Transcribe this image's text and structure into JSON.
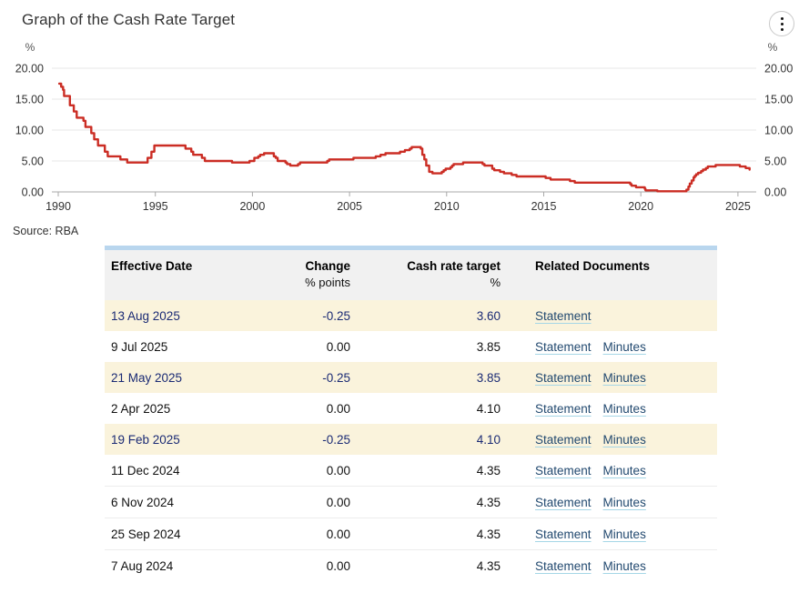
{
  "page": {
    "title": "Graph of the Cash Rate Target",
    "source": "Source: RBA"
  },
  "menu": {
    "icon": "kebab-menu-icon"
  },
  "chart_data": {
    "type": "line",
    "style": "step",
    "title": "Graph of the Cash Rate Target",
    "ylabel_left": "%",
    "ylabel_right": "%",
    "line_color": "#cb2d24",
    "grid": true,
    "xlim": [
      1989.7,
      2026.0
    ],
    "ylim": [
      0,
      20
    ],
    "x_ticks": [
      1990,
      1995,
      2000,
      2005,
      2010,
      2015,
      2020,
      2025
    ],
    "y_ticks": [
      "20.00",
      "15.00",
      "10.00",
      "5.00",
      "0.00"
    ],
    "points": [
      [
        1990.05,
        17.5
      ],
      [
        1990.15,
        17.0
      ],
      [
        1990.25,
        16.5
      ],
      [
        1990.3,
        15.5
      ],
      [
        1990.6,
        14.0
      ],
      [
        1990.8,
        13.0
      ],
      [
        1990.95,
        12.0
      ],
      [
        1991.3,
        11.5
      ],
      [
        1991.4,
        10.5
      ],
      [
        1991.7,
        9.5
      ],
      [
        1991.85,
        8.5
      ],
      [
        1992.05,
        7.5
      ],
      [
        1992.4,
        6.5
      ],
      [
        1992.55,
        5.75
      ],
      [
        1993.2,
        5.25
      ],
      [
        1993.55,
        4.75
      ],
      [
        1994.6,
        5.5
      ],
      [
        1994.8,
        6.5
      ],
      [
        1994.95,
        7.5
      ],
      [
        1996.55,
        7.0
      ],
      [
        1996.85,
        6.5
      ],
      [
        1996.95,
        6.0
      ],
      [
        1997.4,
        5.5
      ],
      [
        1997.55,
        5.0
      ],
      [
        1998.95,
        4.75
      ],
      [
        1999.85,
        5.0
      ],
      [
        2000.1,
        5.5
      ],
      [
        2000.3,
        5.75
      ],
      [
        2000.4,
        6.0
      ],
      [
        2000.6,
        6.25
      ],
      [
        2001.1,
        5.75
      ],
      [
        2001.2,
        5.5
      ],
      [
        2001.3,
        5.0
      ],
      [
        2001.7,
        4.75
      ],
      [
        2001.78,
        4.5
      ],
      [
        2001.95,
        4.25
      ],
      [
        2002.35,
        4.5
      ],
      [
        2002.45,
        4.75
      ],
      [
        2003.85,
        5.0
      ],
      [
        2003.95,
        5.25
      ],
      [
        2005.2,
        5.5
      ],
      [
        2006.35,
        5.75
      ],
      [
        2006.6,
        6.0
      ],
      [
        2006.85,
        6.25
      ],
      [
        2007.6,
        6.5
      ],
      [
        2007.85,
        6.75
      ],
      [
        2008.1,
        7.0
      ],
      [
        2008.2,
        7.25
      ],
      [
        2008.67,
        7.0
      ],
      [
        2008.75,
        6.0
      ],
      [
        2008.85,
        5.25
      ],
      [
        2008.95,
        4.25
      ],
      [
        2009.1,
        3.25
      ],
      [
        2009.27,
        3.0
      ],
      [
        2009.75,
        3.25
      ],
      [
        2009.85,
        3.5
      ],
      [
        2009.95,
        3.75
      ],
      [
        2010.2,
        4.0
      ],
      [
        2010.28,
        4.25
      ],
      [
        2010.36,
        4.5
      ],
      [
        2010.85,
        4.75
      ],
      [
        2011.85,
        4.5
      ],
      [
        2011.95,
        4.25
      ],
      [
        2012.35,
        3.75
      ],
      [
        2012.45,
        3.5
      ],
      [
        2012.75,
        3.25
      ],
      [
        2012.95,
        3.0
      ],
      [
        2013.35,
        2.75
      ],
      [
        2013.6,
        2.5
      ],
      [
        2015.1,
        2.25
      ],
      [
        2015.35,
        2.0
      ],
      [
        2016.35,
        1.75
      ],
      [
        2016.6,
        1.5
      ],
      [
        2019.45,
        1.25
      ],
      [
        2019.52,
        1.0
      ],
      [
        2019.75,
        0.75
      ],
      [
        2020.2,
        0.5
      ],
      [
        2020.24,
        0.25
      ],
      [
        2020.85,
        0.1
      ],
      [
        2022.35,
        0.35
      ],
      [
        2022.45,
        0.85
      ],
      [
        2022.52,
        1.35
      ],
      [
        2022.62,
        1.85
      ],
      [
        2022.72,
        2.35
      ],
      [
        2022.78,
        2.6
      ],
      [
        2022.85,
        2.85
      ],
      [
        2022.95,
        3.1
      ],
      [
        2023.1,
        3.35
      ],
      [
        2023.2,
        3.6
      ],
      [
        2023.35,
        3.85
      ],
      [
        2023.45,
        4.1
      ],
      [
        2023.85,
        4.35
      ],
      [
        2025.1,
        4.1
      ],
      [
        2025.4,
        3.85
      ],
      [
        2025.6,
        3.6
      ]
    ]
  },
  "colors": {
    "line_red": "#cb2d24",
    "highlight_row_bg": "#faf3dc",
    "highlight_row_text": "#1a2a74",
    "link": "#234a70",
    "link_underline": "#a5d6e6",
    "table_top_border": "#b9d6ee",
    "header_bg": "#f1f1f1"
  },
  "table": {
    "headers": [
      {
        "label": "Effective Date",
        "sub": ""
      },
      {
        "label": "Change",
        "sub": "% points"
      },
      {
        "label": "Cash rate target",
        "sub": "%"
      },
      {
        "label": "Related Documents",
        "sub": ""
      }
    ],
    "rows": [
      {
        "date": "13 Aug 2025",
        "change": "-0.25",
        "target": "3.60",
        "documents": [
          "Statement"
        ],
        "highlighted": true
      },
      {
        "date": "9 Jul 2025",
        "change": "0.00",
        "target": "3.85",
        "documents": [
          "Statement",
          "Minutes"
        ],
        "highlighted": false
      },
      {
        "date": "21 May 2025",
        "change": "-0.25",
        "target": "3.85",
        "documents": [
          "Statement",
          "Minutes"
        ],
        "highlighted": true
      },
      {
        "date": "2 Apr 2025",
        "change": "0.00",
        "target": "4.10",
        "documents": [
          "Statement",
          "Minutes"
        ],
        "highlighted": false
      },
      {
        "date": "19 Feb 2025",
        "change": "-0.25",
        "target": "4.10",
        "documents": [
          "Statement",
          "Minutes"
        ],
        "highlighted": true
      },
      {
        "date": "11 Dec 2024",
        "change": "0.00",
        "target": "4.35",
        "documents": [
          "Statement",
          "Minutes"
        ],
        "highlighted": false
      },
      {
        "date": "6 Nov 2024",
        "change": "0.00",
        "target": "4.35",
        "documents": [
          "Statement",
          "Minutes"
        ],
        "highlighted": false
      },
      {
        "date": "25 Sep 2024",
        "change": "0.00",
        "target": "4.35",
        "documents": [
          "Statement",
          "Minutes"
        ],
        "highlighted": false
      },
      {
        "date": "7 Aug 2024",
        "change": "0.00",
        "target": "4.35",
        "documents": [
          "Statement",
          "Minutes"
        ],
        "highlighted": false
      }
    ]
  }
}
